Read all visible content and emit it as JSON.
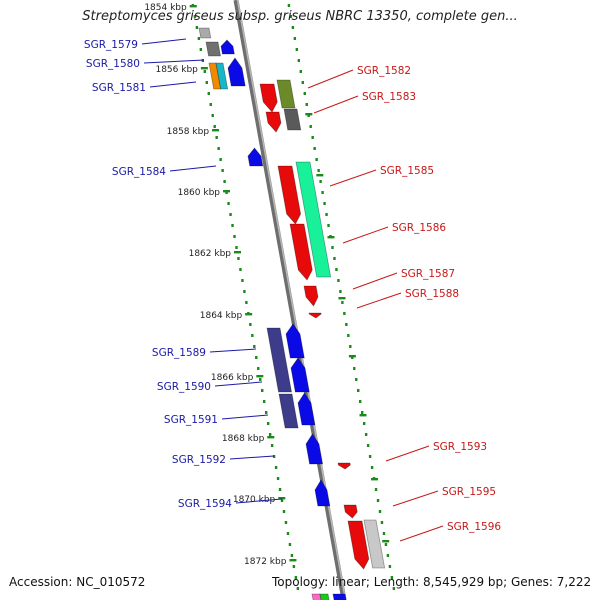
{
  "title": "Streptomyces griseus subsp. griseus NBRC 13350, complete gen...",
  "accession": "Accession: NC_010572",
  "topology": "Topology: linear; Length: 8,545,929 bp; Genes: 7,222",
  "colors": {
    "forward_gene": "#0a0ae6",
    "reverse_gene": "#e60a0a",
    "backbone": "#8a8a8a",
    "tick": "#1a8a1a",
    "label_left": "#1a1aa8",
    "label_right": "#c81818"
  },
  "ruler_labels": [
    "1854 kbp",
    "1856 kbp",
    "1858 kbp",
    "1860 kbp",
    "1862 kbp",
    "1864 kbp",
    "1866 kbp",
    "1868 kbp",
    "1870 kbp",
    "1872 kbp"
  ],
  "genes": [
    {
      "name": "SGR_1579",
      "side": "left",
      "strand": "forward",
      "color": "#0a0ae6"
    },
    {
      "name": "SGR_1580",
      "side": "left",
      "strand": "forward",
      "color": "#0a0ae6"
    },
    {
      "name": "SGR_1581",
      "side": "left",
      "strand": "forward",
      "color": "#0a0ae6"
    },
    {
      "name": "SGR_1582",
      "side": "right",
      "strand": "reverse",
      "color": "#e60a0a"
    },
    {
      "name": "SGR_1583",
      "side": "right",
      "strand": "reverse",
      "color": "#e60a0a"
    },
    {
      "name": "SGR_1584",
      "side": "left",
      "strand": "forward",
      "color": "#0a0ae6"
    },
    {
      "name": "SGR_1585",
      "side": "right",
      "strand": "reverse",
      "color": "#e60a0a"
    },
    {
      "name": "SGR_1586",
      "side": "right",
      "strand": "reverse",
      "color": "#e60a0a"
    },
    {
      "name": "SGR_1587",
      "side": "right",
      "strand": "reverse",
      "color": "#e60a0a"
    },
    {
      "name": "SGR_1588",
      "side": "right",
      "strand": "reverse",
      "color": "#e60a0a"
    },
    {
      "name": "SGR_1589",
      "side": "left",
      "strand": "forward",
      "color": "#0a0ae6"
    },
    {
      "name": "SGR_1590",
      "side": "left",
      "strand": "forward",
      "color": "#0a0ae6"
    },
    {
      "name": "SGR_1591",
      "side": "left",
      "strand": "forward",
      "color": "#0a0ae6"
    },
    {
      "name": "SGR_1592",
      "side": "left",
      "strand": "forward",
      "color": "#0a0ae6"
    },
    {
      "name": "SGR_1593",
      "side": "right",
      "strand": "reverse",
      "color": "#e60a0a"
    },
    {
      "name": "SGR_1594",
      "side": "left",
      "strand": "forward",
      "color": "#0a0ae6"
    },
    {
      "name": "SGR_1595",
      "side": "right",
      "strand": "reverse",
      "color": "#e60a0a"
    },
    {
      "name": "SGR_1596",
      "side": "right",
      "strand": "reverse",
      "color": "#e60a0a"
    }
  ]
}
